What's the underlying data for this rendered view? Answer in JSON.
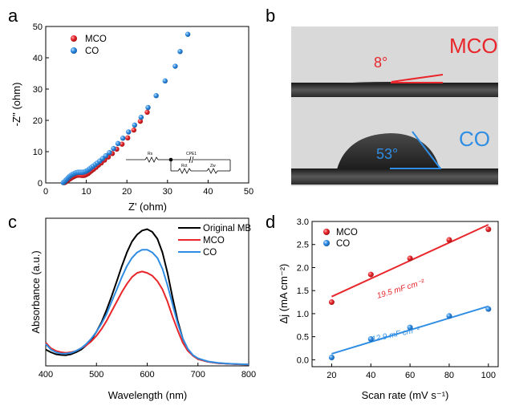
{
  "figure": {
    "panels": {
      "a": "a",
      "b": "b",
      "c": "c",
      "d": "d"
    }
  },
  "colors": {
    "red": "#e8262b",
    "blue": "#2f8de4",
    "black": "#000000",
    "photo_bg": "#d9d9d9",
    "substrate": "#3b3b3b"
  },
  "chart_data": [
    {
      "id": "a",
      "type": "scatter",
      "xlabel": "Z' (ohm)",
      "ylabel": "-Z'' (ohm)",
      "xlim": [
        0,
        50
      ],
      "ylim": [
        0,
        50
      ],
      "xticks": [
        "0",
        "10",
        "20",
        "30",
        "40",
        "50"
      ],
      "yticks": [
        "0",
        "10",
        "20",
        "30",
        "40",
        "50"
      ],
      "legend_position": "top-left",
      "series": [
        {
          "name": "MCO",
          "color": "#e8262b",
          "x": [
            4.6,
            4.9,
            5.2,
            5.5,
            5.8,
            6.1,
            6.4,
            6.7,
            7.0,
            7.3,
            7.6,
            7.9,
            8.2,
            8.5,
            8.8,
            9.1,
            9.4,
            9.7,
            10.0,
            10.4,
            10.8,
            11.3,
            11.8,
            12.4,
            13.0,
            13.7,
            14.5,
            15.4,
            16.4,
            17.5,
            18.8,
            20.2,
            21.7,
            23.3,
            25.0
          ],
          "y": [
            0.1,
            0.3,
            0.6,
            0.9,
            1.2,
            1.4,
            1.7,
            1.9,
            2.1,
            2.3,
            2.4,
            2.5,
            2.5,
            2.5,
            2.4,
            2.4,
            2.4,
            2.5,
            2.7,
            3.0,
            3.4,
            3.9,
            4.4,
            5.0,
            5.7,
            6.4,
            7.3,
            8.3,
            9.4,
            10.8,
            12.4,
            14.4,
            16.9,
            19.7,
            22.6
          ]
        },
        {
          "name": "CO",
          "color": "#2f8de4",
          "x": [
            4.3,
            4.6,
            4.9,
            5.2,
            5.5,
            5.8,
            6.1,
            6.4,
            6.7,
            7.0,
            7.3,
            7.6,
            7.9,
            8.2,
            8.5,
            8.8,
            9.1,
            9.4,
            9.7,
            10.0,
            10.3,
            10.6,
            10.9,
            11.3,
            11.7,
            12.2,
            12.7,
            13.3,
            14.0,
            14.8,
            15.7,
            16.7,
            17.8,
            19.0,
            20.4,
            21.9,
            23.5,
            25.2,
            27.2,
            29.4,
            31.9,
            33.1,
            35.0
          ],
          "y": [
            0.1,
            0.4,
            0.8,
            1.2,
            1.6,
            2.0,
            2.3,
            2.6,
            2.8,
            3.0,
            3.2,
            3.3,
            3.4,
            3.4,
            3.4,
            3.4,
            3.4,
            3.5,
            3.6,
            3.8,
            4.0,
            4.3,
            4.6,
            5.0,
            5.4,
            5.9,
            6.4,
            7.0,
            7.8,
            8.7,
            9.7,
            11.0,
            12.6,
            14.3,
            16.3,
            18.5,
            21.0,
            24.1,
            27.9,
            32.6,
            37.3,
            42.0,
            47.5
          ]
        }
      ],
      "inset": {
        "labels": [
          "Rs",
          "CPE1",
          "Rct",
          "Zw"
        ]
      }
    },
    {
      "id": "b",
      "type": "image",
      "rows": [
        {
          "name": "MCO",
          "angle_label": "8°",
          "color": "#e8262b"
        },
        {
          "name": "CO",
          "angle_label": "53°",
          "color": "#2f8de4"
        }
      ]
    },
    {
      "id": "c",
      "type": "line",
      "xlabel": "Wavelength (nm)",
      "ylabel": "Absorbance (a.u.)",
      "xlim": [
        400,
        800
      ],
      "ylim": [
        0,
        1.08
      ],
      "xticks": [
        "400",
        "500",
        "600",
        "700",
        "800"
      ],
      "legend_position": "top-right",
      "x": [
        400,
        410,
        420,
        430,
        440,
        450,
        460,
        470,
        480,
        490,
        500,
        510,
        520,
        530,
        540,
        550,
        560,
        570,
        580,
        590,
        600,
        610,
        620,
        630,
        640,
        650,
        660,
        670,
        680,
        690,
        700,
        720,
        740,
        760,
        780,
        800
      ],
      "series": [
        {
          "name": "Original MB",
          "color": "#000000",
          "values": [
            0.12,
            0.1,
            0.085,
            0.08,
            0.078,
            0.085,
            0.1,
            0.12,
            0.15,
            0.19,
            0.25,
            0.32,
            0.41,
            0.51,
            0.62,
            0.73,
            0.83,
            0.91,
            0.96,
            0.99,
            1.0,
            0.98,
            0.93,
            0.83,
            0.68,
            0.5,
            0.33,
            0.2,
            0.12,
            0.075,
            0.05,
            0.03,
            0.02,
            0.015,
            0.012,
            0.01
          ]
        },
        {
          "name": "MCO",
          "color": "#e8262b",
          "values": [
            0.17,
            0.13,
            0.11,
            0.1,
            0.095,
            0.1,
            0.11,
            0.13,
            0.15,
            0.18,
            0.22,
            0.27,
            0.33,
            0.4,
            0.47,
            0.54,
            0.6,
            0.65,
            0.68,
            0.69,
            0.68,
            0.66,
            0.62,
            0.56,
            0.47,
            0.36,
            0.26,
            0.17,
            0.11,
            0.075,
            0.05,
            0.03,
            0.02,
            0.015,
            0.012,
            0.01
          ]
        },
        {
          "name": "CO",
          "color": "#2f8de4",
          "values": [
            0.16,
            0.12,
            0.1,
            0.09,
            0.09,
            0.095,
            0.11,
            0.13,
            0.16,
            0.2,
            0.25,
            0.31,
            0.38,
            0.47,
            0.56,
            0.65,
            0.73,
            0.79,
            0.83,
            0.85,
            0.85,
            0.83,
            0.79,
            0.71,
            0.59,
            0.45,
            0.31,
            0.2,
            0.125,
            0.08,
            0.055,
            0.032,
            0.022,
            0.016,
            0.013,
            0.01
          ]
        }
      ]
    },
    {
      "id": "d",
      "type": "scatter",
      "xlabel": "Scan rate (mV s⁻¹)",
      "ylabel": "Δj (mA cm⁻²)",
      "xlim": [
        10,
        105
      ],
      "ylim": [
        -0.15,
        3.0
      ],
      "xticks": [
        20,
        40,
        60,
        80,
        100
      ],
      "yticks": [
        0.0,
        0.5,
        1.0,
        1.5,
        2.0,
        2.5,
        3.0
      ],
      "ytick_labels": [
        "0.0",
        "0.5",
        "1.0",
        "1.5",
        "2.0",
        "2.5",
        "3.0"
      ],
      "legend_position": "top-left",
      "series": [
        {
          "name": "MCO",
          "color": "#e8262b",
          "x": [
            20,
            40,
            60,
            80,
            100
          ],
          "y": [
            1.25,
            1.85,
            2.2,
            2.6,
            2.83
          ],
          "fit": {
            "from": [
              20,
              1.37
            ],
            "to": [
              100,
              2.93
            ]
          },
          "fit_label": "19.5 mF cm⁻²"
        },
        {
          "name": "CO",
          "color": "#2f8de4",
          "x": [
            20,
            40,
            60,
            80,
            100
          ],
          "y": [
            0.05,
            0.45,
            0.7,
            0.95,
            1.1
          ],
          "fit": {
            "from": [
              20,
              0.13
            ],
            "to": [
              100,
              1.16
            ]
          },
          "fit_label": "12.9 mF cm⁻²"
        }
      ]
    }
  ]
}
